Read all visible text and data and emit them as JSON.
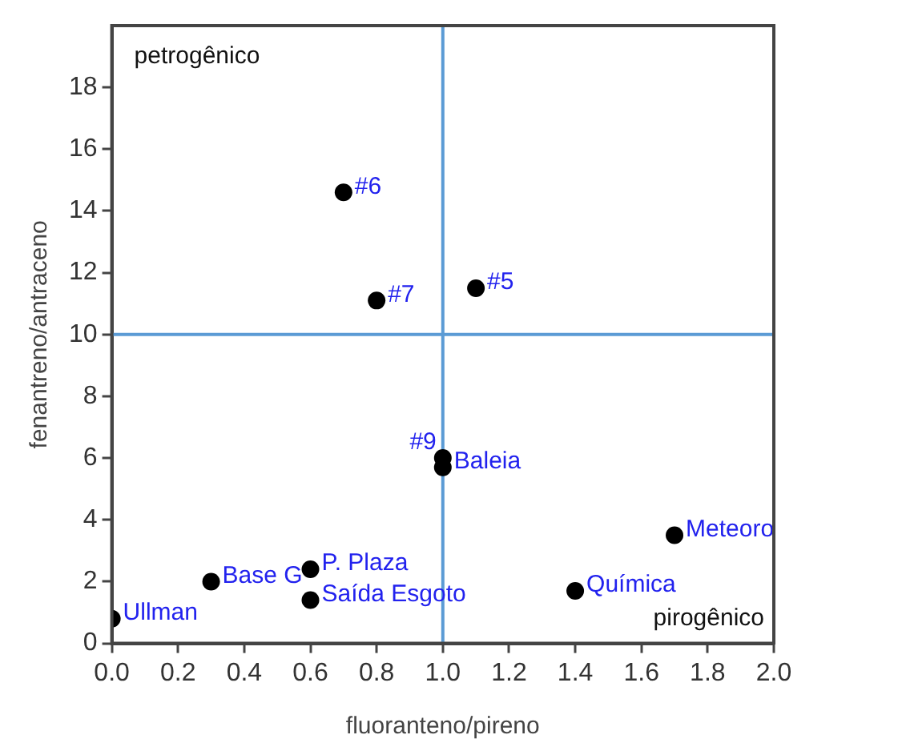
{
  "chart_data": {
    "type": "scatter",
    "xlabel": "fluoranteno/pireno",
    "ylabel": "fenantreno/antraceno",
    "x": [
      0.7,
      0.8,
      1.1,
      1.0,
      1.0,
      1.7,
      1.4,
      0.3,
      0.6,
      0.6,
      0.0
    ],
    "series": [
      {
        "color": "#000000",
        "values": [
          14.6,
          11.1,
          11.5,
          6.0,
          5.7,
          3.5,
          1.7,
          2.0,
          2.4,
          1.4,
          0.8
        ]
      }
    ],
    "xlim": [
      0,
      2
    ],
    "xticks": [
      {
        "value": 0,
        "label": "0.0"
      },
      {
        "value": 0.2,
        "label": "0.2"
      },
      {
        "value": 0.4,
        "label": "0.4"
      },
      {
        "value": 0.6,
        "label": "0.6"
      },
      {
        "value": 0.8,
        "label": "0.8"
      },
      {
        "value": 1,
        "label": "1.0"
      },
      {
        "value": 1.2,
        "label": "1.2"
      },
      {
        "value": 1.4,
        "label": "1.4"
      },
      {
        "value": 1.6,
        "label": "1.6"
      },
      {
        "value": 1.8,
        "label": "1.8"
      },
      {
        "value": 2,
        "label": "2.0"
      }
    ],
    "ylim": [
      0,
      20
    ],
    "yticks": [
      0,
      2,
      4,
      6,
      8,
      10,
      12,
      14,
      16,
      18
    ],
    "grid": false,
    "legend": false,
    "marker": "circle",
    "ref_lines": [
      {
        "axis": "x",
        "value": 1,
        "color": "#5b9bd5"
      },
      {
        "axis": "y",
        "value": 10,
        "color": "#5b9bd5"
      }
    ],
    "annotations": [
      "petrogênico",
      "pirogênico",
      {
        "text": "#6",
        "x": 0.7,
        "y": 14.6
      },
      {
        "text": "#7",
        "x": 0.8,
        "y": 11.1
      },
      {
        "text": "#5",
        "x": 1.1,
        "y": 11.5
      },
      {
        "text": "#9",
        "x": 1.0,
        "y": 6.0
      },
      {
        "text": "Baleia",
        "x": 1.0,
        "y": 5.7
      },
      {
        "text": "Meteoro",
        "x": 1.7,
        "y": 3.5
      },
      {
        "text": "Química",
        "x": 1.4,
        "y": 1.7
      },
      {
        "text": "Base G",
        "x": 0.3,
        "y": 2.0
      },
      {
        "text": "P. Plaza",
        "x": 0.6,
        "y": 2.4
      },
      {
        "text": "Saída Esgoto",
        "x": 0.6,
        "y": 1.4
      },
      {
        "text": "Ullman",
        "x": 0.0,
        "y": 0.8
      }
    ]
  }
}
